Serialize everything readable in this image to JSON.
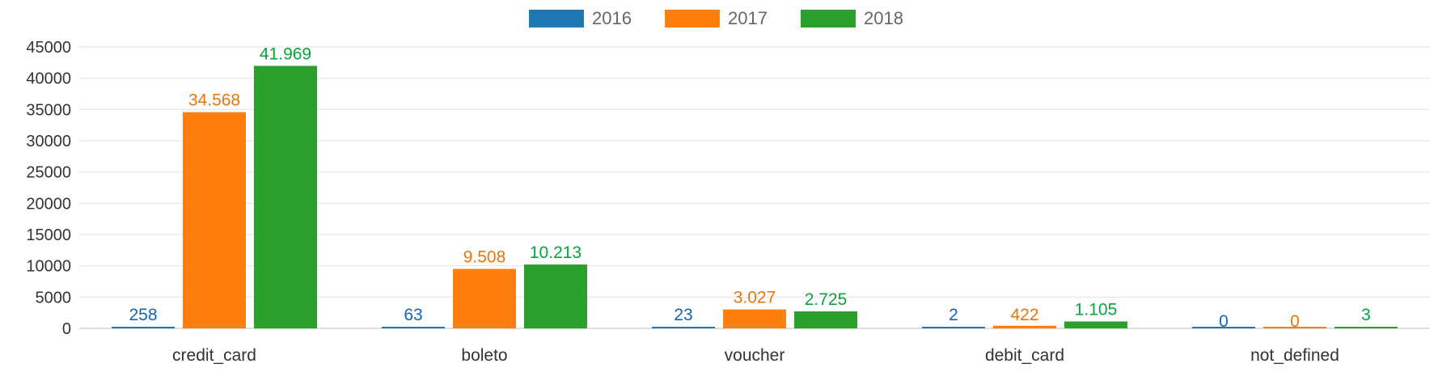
{
  "chart_data": {
    "type": "bar",
    "title": "",
    "xlabel": "",
    "ylabel": "",
    "categories": [
      "credit_card",
      "boleto",
      "voucher",
      "debit_card",
      "not_defined"
    ],
    "series": [
      {
        "name": "2016",
        "color": "#1f77b4",
        "label_color": "#1565b0",
        "values": [
          258,
          63,
          23,
          2,
          0
        ],
        "labels": [
          "258",
          "63",
          "23",
          "2",
          "0"
        ]
      },
      {
        "name": "2017",
        "color": "#ff7f0e",
        "label_color": "#e8760a",
        "values": [
          34568,
          9508,
          3027,
          422,
          0
        ],
        "labels": [
          "34.568",
          "9.508",
          "3.027",
          "422",
          "0"
        ]
      },
      {
        "name": "2018",
        "color": "#2ca02c",
        "label_color": "#0aa33c",
        "values": [
          41969,
          10213,
          2725,
          1105,
          3
        ],
        "labels": [
          "41.969",
          "10.213",
          "2.725",
          "1.105",
          "3"
        ]
      }
    ],
    "ylim": [
      0,
      45000
    ],
    "yticks": [
      0,
      5000,
      10000,
      15000,
      20000,
      25000,
      30000,
      35000,
      40000,
      45000
    ],
    "grid": true,
    "legend_position": "top-center"
  }
}
